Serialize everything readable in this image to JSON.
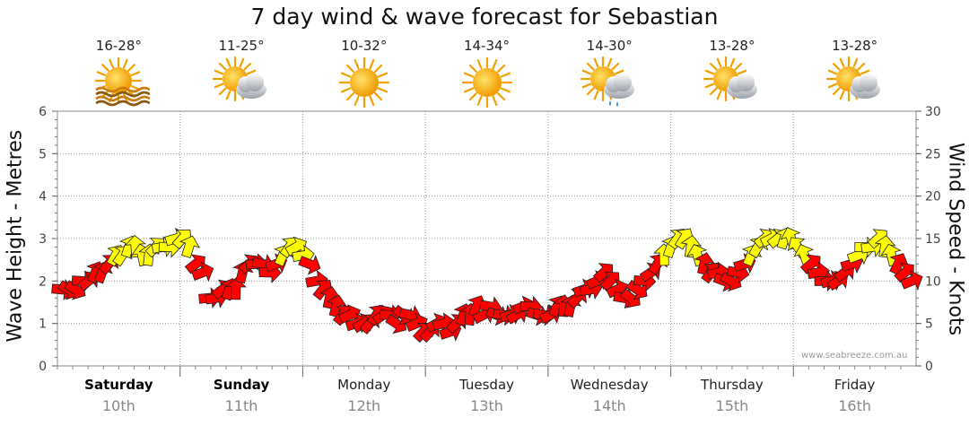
{
  "page": {
    "title": "7 day wind & wave forecast for Sebastian",
    "left_axis_label": "Wave Height - Metres",
    "right_axis_label": "Wind Speed - Knots",
    "watermark": "www.seabreeze.com.au"
  },
  "days": [
    {
      "name": "Saturday",
      "date": "10th",
      "temp": "16-28°",
      "icon": "sun-waves-icon",
      "bold": true
    },
    {
      "name": "Sunday",
      "date": "11th",
      "temp": "11-25°",
      "icon": "sun-cloud-icon",
      "bold": true
    },
    {
      "name": "Monday",
      "date": "12th",
      "temp": "10-32°",
      "icon": "sun-icon",
      "bold": false
    },
    {
      "name": "Tuesday",
      "date": "13th",
      "temp": "14-34°",
      "icon": "sun-icon",
      "bold": false
    },
    {
      "name": "Wednesday",
      "date": "14th",
      "temp": "14-30°",
      "icon": "sun-cloud-rain-icon",
      "bold": false
    },
    {
      "name": "Thursday",
      "date": "15th",
      "temp": "13-28°",
      "icon": "sun-cloud-icon",
      "bold": false
    },
    {
      "name": "Friday",
      "date": "16th",
      "temp": "13-28°",
      "icon": "sun-cloud-icon",
      "bold": false
    }
  ],
  "chart_data": {
    "type": "line",
    "title": "7 day wind & wave forecast for Sebastian",
    "ylabel_left": "Wave Height - Metres",
    "ylabel_right": "Wind Speed - Knots",
    "ylim_left": [
      0,
      6
    ],
    "ylim_right": [
      0,
      30
    ],
    "left_ticks": [
      0,
      1,
      2,
      3,
      4,
      5,
      6
    ],
    "right_ticks": [
      0,
      5,
      10,
      15,
      20,
      25,
      30
    ],
    "grid": true,
    "colors": {
      "strong_wind": "#ffff00",
      "moderate_wind": "#ff0000",
      "arrow_outline": "#222222",
      "grid": "#9a9a9a"
    },
    "series": [
      {
        "name": "",
        "kind": "wind_arrows",
        "unit": "knots",
        "values": [
          9,
          9,
          9,
          10,
          10,
          11,
          11,
          12,
          13,
          13,
          14,
          14,
          13,
          13,
          14,
          14,
          14,
          15,
          15,
          14,
          12,
          11,
          8,
          8,
          9,
          9,
          9,
          11,
          12,
          12,
          12,
          11,
          12,
          13,
          14,
          14,
          13,
          12,
          10,
          9,
          8,
          7,
          6,
          6,
          5,
          5,
          5,
          6,
          6,
          6,
          5,
          6,
          6,
          5,
          4,
          4,
          5,
          5,
          4,
          5,
          6,
          6,
          7,
          6,
          7,
          6,
          6,
          6,
          6,
          7,
          7,
          6,
          6,
          6,
          7,
          7,
          7,
          8,
          9,
          9,
          10,
          11,
          10,
          9,
          8,
          8,
          9,
          10,
          11,
          12,
          13,
          14,
          15,
          15,
          14,
          13,
          12,
          11,
          11,
          10,
          10,
          11,
          12,
          13,
          14,
          15,
          15,
          15,
          15,
          15,
          14,
          13,
          12,
          11,
          10,
          10,
          10,
          11,
          12,
          13,
          14,
          14,
          15,
          14,
          13,
          12,
          11,
          10
        ]
      }
    ]
  }
}
